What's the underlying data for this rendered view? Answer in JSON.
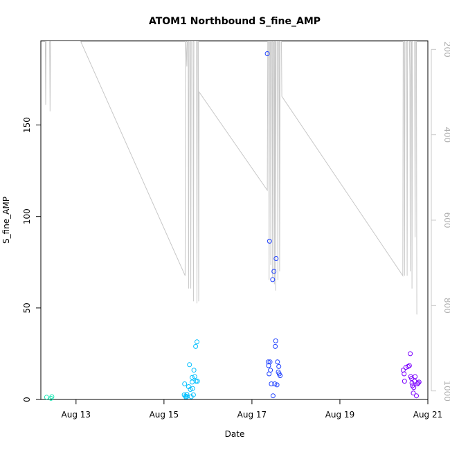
{
  "chart_data": {
    "type": "scatter",
    "title": "ATOM1 Northbound S_fine_AMP",
    "xlabel": "Date",
    "ylabel": "S_fine_AMP",
    "x_unit": "days (August)",
    "xlim": [
      12.2,
      21.0
    ],
    "ylim": [
      0,
      196
    ],
    "x_ticks": [
      {
        "value": 13,
        "label": "Aug 13"
      },
      {
        "value": 15,
        "label": "Aug 15"
      },
      {
        "value": 17,
        "label": "Aug 17"
      },
      {
        "value": 19,
        "label": "Aug 19"
      },
      {
        "value": 21,
        "label": "Aug 21"
      }
    ],
    "y_ticks": [
      0,
      50,
      100,
      150
    ],
    "y2": {
      "reversed": true,
      "lim": [
        180,
        1020
      ],
      "ticks": [
        200,
        400,
        600,
        800,
        1000
      ],
      "color": "#c8c8c8"
    },
    "scatter_series": [
      {
        "color": "#1de9b6",
        "points": [
          [
            12.33,
            1.2
          ],
          [
            12.43,
            0.6
          ],
          [
            12.45,
            1.5
          ]
        ]
      },
      {
        "color": "#00bfff",
        "points": [
          [
            15.46,
            2.5
          ],
          [
            15.47,
            8.5
          ],
          [
            15.49,
            1.8
          ],
          [
            15.5,
            1.2
          ],
          [
            15.52,
            1.6
          ],
          [
            15.52,
            2.8
          ],
          [
            15.56,
            7
          ],
          [
            15.58,
            19
          ],
          [
            15.6,
            5.5
          ],
          [
            15.62,
            1.5
          ],
          [
            15.64,
            12
          ],
          [
            15.64,
            9.5
          ],
          [
            15.65,
            6
          ],
          [
            15.67,
            2.5
          ],
          [
            15.68,
            16
          ],
          [
            15.7,
            12.5
          ],
          [
            15.72,
            29
          ],
          [
            15.73,
            10
          ],
          [
            15.75,
            31.5
          ],
          [
            15.76,
            10
          ]
        ]
      },
      {
        "color": "#1e40ff",
        "points": [
          [
            17.35,
            189
          ],
          [
            17.37,
            20.5
          ],
          [
            17.38,
            18.5
          ],
          [
            17.39,
            14
          ],
          [
            17.4,
            86.5
          ],
          [
            17.41,
            20.5
          ],
          [
            17.42,
            16
          ],
          [
            17.44,
            8.5
          ],
          [
            17.47,
            65.5
          ],
          [
            17.48,
            2
          ],
          [
            17.5,
            70
          ],
          [
            17.52,
            8.5
          ],
          [
            17.53,
            29
          ],
          [
            17.54,
            32
          ],
          [
            17.55,
            77
          ],
          [
            17.57,
            8
          ],
          [
            17.58,
            20.5
          ],
          [
            17.6,
            15
          ],
          [
            17.61,
            18
          ],
          [
            17.62,
            14
          ],
          [
            17.64,
            13
          ]
        ]
      },
      {
        "color": "#7b00ff",
        "points": [
          [
            20.44,
            16
          ],
          [
            20.46,
            14
          ],
          [
            20.47,
            10
          ],
          [
            20.5,
            17.5
          ],
          [
            20.55,
            18
          ],
          [
            20.58,
            18.5
          ],
          [
            20.6,
            25
          ],
          [
            20.61,
            12.5
          ],
          [
            20.63,
            11.5
          ],
          [
            20.64,
            9
          ],
          [
            20.65,
            7.5
          ],
          [
            20.67,
            3.5
          ],
          [
            20.68,
            6.5
          ],
          [
            20.7,
            10
          ],
          [
            20.71,
            12.5
          ],
          [
            20.74,
            2
          ],
          [
            20.76,
            8.5
          ],
          [
            20.78,
            9
          ],
          [
            20.8,
            9.5
          ]
        ]
      }
    ],
    "line_series": {
      "color": "#c8c8c8",
      "axis": "y2",
      "points": [
        [
          12.3,
          180
        ],
        [
          12.31,
          330
        ],
        [
          12.32,
          180
        ],
        [
          12.4,
          180
        ],
        [
          12.41,
          345
        ],
        [
          12.42,
          180
        ],
        [
          13.1,
          180
        ],
        [
          15.48,
          730
        ],
        [
          15.49,
          180
        ],
        [
          15.5,
          180
        ],
        [
          15.52,
          240
        ],
        [
          15.53,
          180
        ],
        [
          15.55,
          180
        ],
        [
          15.56,
          760
        ],
        [
          15.57,
          180
        ],
        [
          15.6,
          180
        ],
        [
          15.61,
          760
        ],
        [
          15.62,
          180
        ],
        [
          15.66,
          180
        ],
        [
          15.67,
          790
        ],
        [
          15.68,
          180
        ],
        [
          15.74,
          180
        ],
        [
          15.75,
          795
        ],
        [
          15.76,
          180
        ],
        [
          15.78,
          180
        ],
        [
          15.79,
          790
        ],
        [
          15.8,
          300
        ],
        [
          17.35,
          530
        ],
        [
          17.36,
          180
        ],
        [
          17.38,
          180
        ],
        [
          17.39,
          740
        ],
        [
          17.4,
          180
        ],
        [
          17.42,
          180
        ],
        [
          17.43,
          705
        ],
        [
          17.44,
          180
        ],
        [
          17.46,
          180
        ],
        [
          17.47,
          735
        ],
        [
          17.48,
          180
        ],
        [
          17.5,
          180
        ],
        [
          17.51,
          750
        ],
        [
          17.52,
          180
        ],
        [
          17.53,
          180
        ],
        [
          17.54,
          765
        ],
        [
          17.55,
          180
        ],
        [
          17.58,
          180
        ],
        [
          17.59,
          740
        ],
        [
          17.6,
          180
        ],
        [
          17.62,
          180
        ],
        [
          17.63,
          720
        ],
        [
          17.64,
          180
        ],
        [
          17.67,
          180
        ],
        [
          17.68,
          310
        ],
        [
          20.43,
          730
        ],
        [
          20.44,
          180
        ],
        [
          20.46,
          180
        ],
        [
          20.47,
          730
        ],
        [
          20.48,
          180
        ],
        [
          20.52,
          180
        ],
        [
          20.53,
          730
        ],
        [
          20.54,
          180
        ],
        [
          20.58,
          180
        ],
        [
          20.59,
          260
        ],
        [
          20.6,
          720
        ],
        [
          20.61,
          180
        ],
        [
          20.63,
          180
        ],
        [
          20.64,
          760
        ],
        [
          20.65,
          180
        ],
        [
          20.7,
          180
        ],
        [
          20.71,
          640
        ],
        [
          20.72,
          180
        ],
        [
          20.74,
          180
        ],
        [
          20.75,
          820
        ],
        [
          20.76,
          820
        ]
      ]
    },
    "grid": false,
    "legend": "none"
  }
}
